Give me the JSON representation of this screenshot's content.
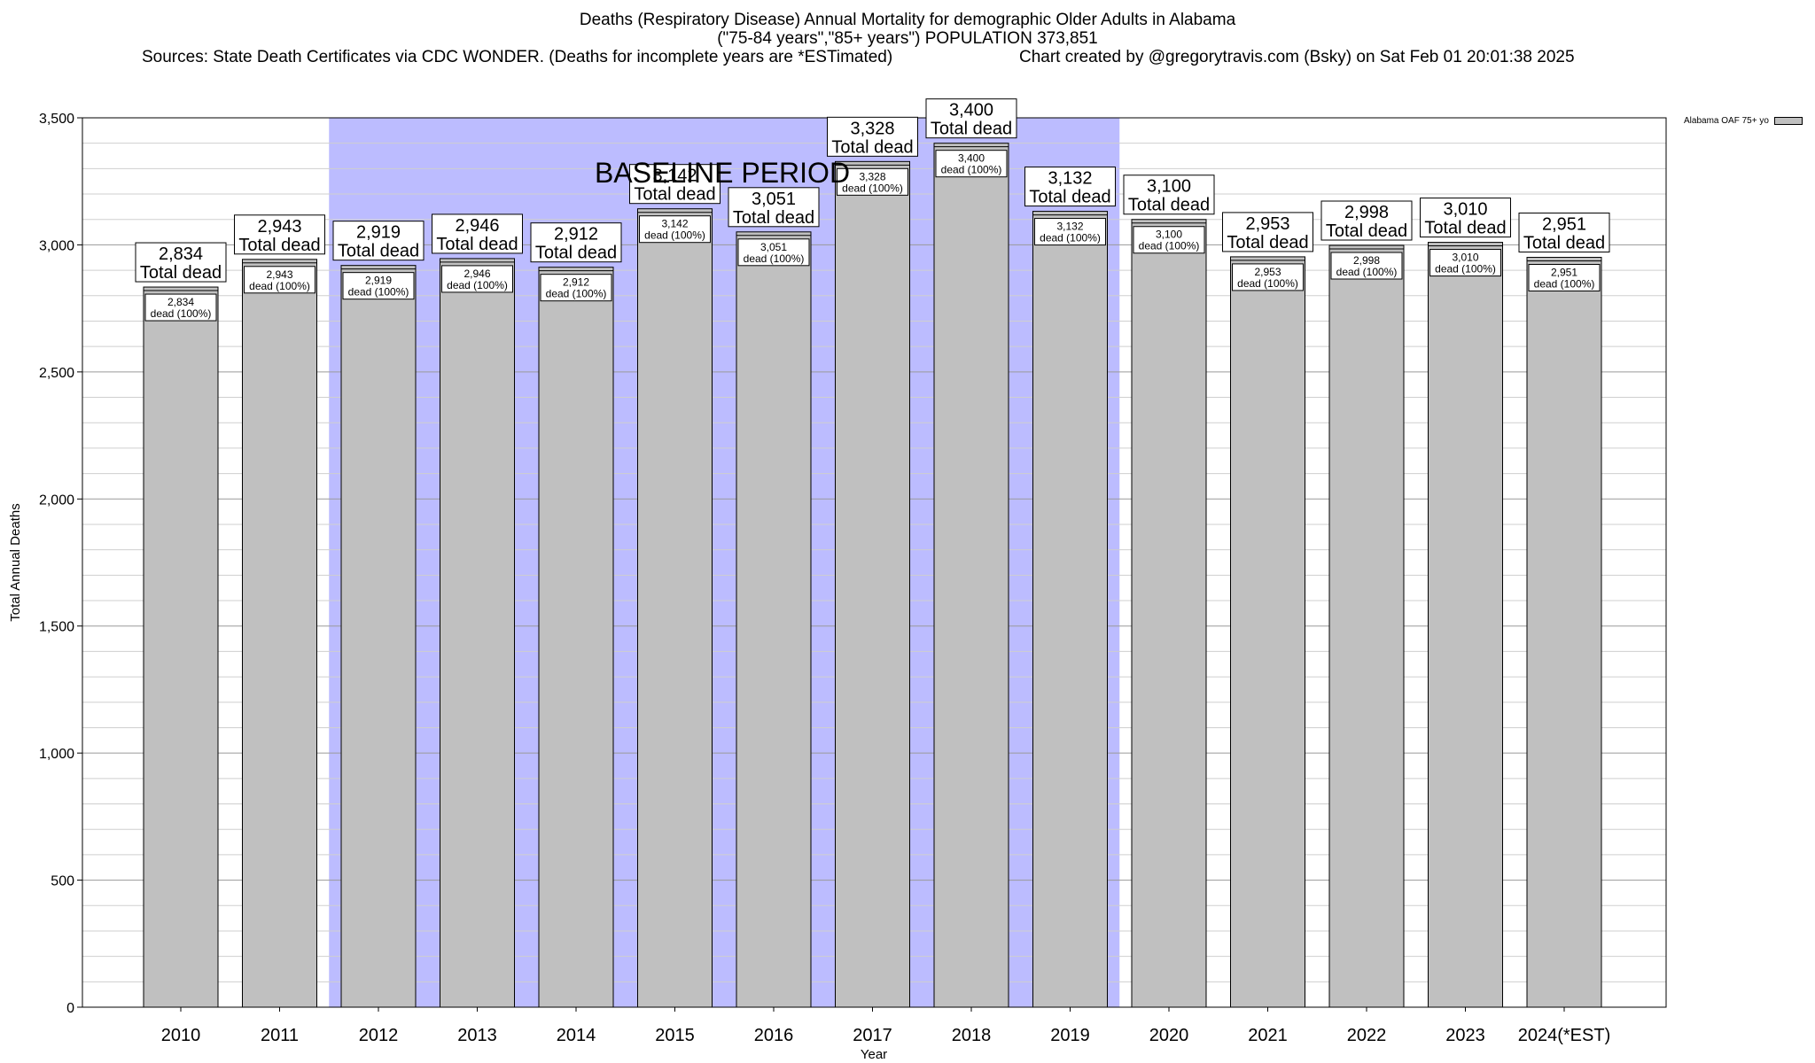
{
  "title": {
    "line1": "Deaths (Respiratory Disease) Annual Mortality for demographic Older Adults in Alabama",
    "line2": "(\"75-84 years\",\"85+ years\") POPULATION 373,851",
    "sources": "Sources: State Death Certificates via CDC WONDER. (Deaths for incomplete years are *ESTimated)",
    "credit": "Chart created by @gregorytravis.com (Bsky) on Sat Feb 01 20:01:38 2025"
  },
  "legend": {
    "label": "Alabama OAF 75+ yo"
  },
  "annotation": {
    "baseline": "BASELINE PERIOD"
  },
  "colors": {
    "bar": "#c0c0c0",
    "baseline": "#bcbcff",
    "grid": "#b0b0b0"
  },
  "chart_data": {
    "type": "bar",
    "xlabel": "Year",
    "ylabel": "Total Annual Deaths",
    "ylim": [
      0,
      3500
    ],
    "yticks": [
      0,
      500,
      1000,
      1500,
      2000,
      2500,
      3000,
      3500
    ],
    "ytick_labels": [
      "0",
      "500",
      "1,000",
      "1,500",
      "2,000",
      "2,500",
      "3,000",
      "3,500"
    ],
    "grid": true,
    "legend_position": "top-right outside",
    "baseline_period": {
      "from": "2012",
      "to": "2019"
    },
    "categories": [
      "2010",
      "2011",
      "2012",
      "2013",
      "2014",
      "2015",
      "2016",
      "2017",
      "2018",
      "2019",
      "2020",
      "2021",
      "2022",
      "2023",
      "2024(*EST)"
    ],
    "series": [
      {
        "name": "Alabama OAF 75+ yo",
        "values": [
          2834,
          2943,
          2919,
          2946,
          2912,
          3142,
          3051,
          3328,
          3400,
          3132,
          3100,
          2953,
          2998,
          3010,
          2951
        ]
      }
    ],
    "total_labels": [
      "2,834",
      "2,943",
      "2,919",
      "2,946",
      "2,912",
      "3,142",
      "3,051",
      "3,328",
      "3,400",
      "3,132",
      "3,100",
      "2,953",
      "2,998",
      "3,010",
      "2,951"
    ],
    "total_suffix": "Total dead",
    "inner_suffix": "dead (100%)"
  }
}
